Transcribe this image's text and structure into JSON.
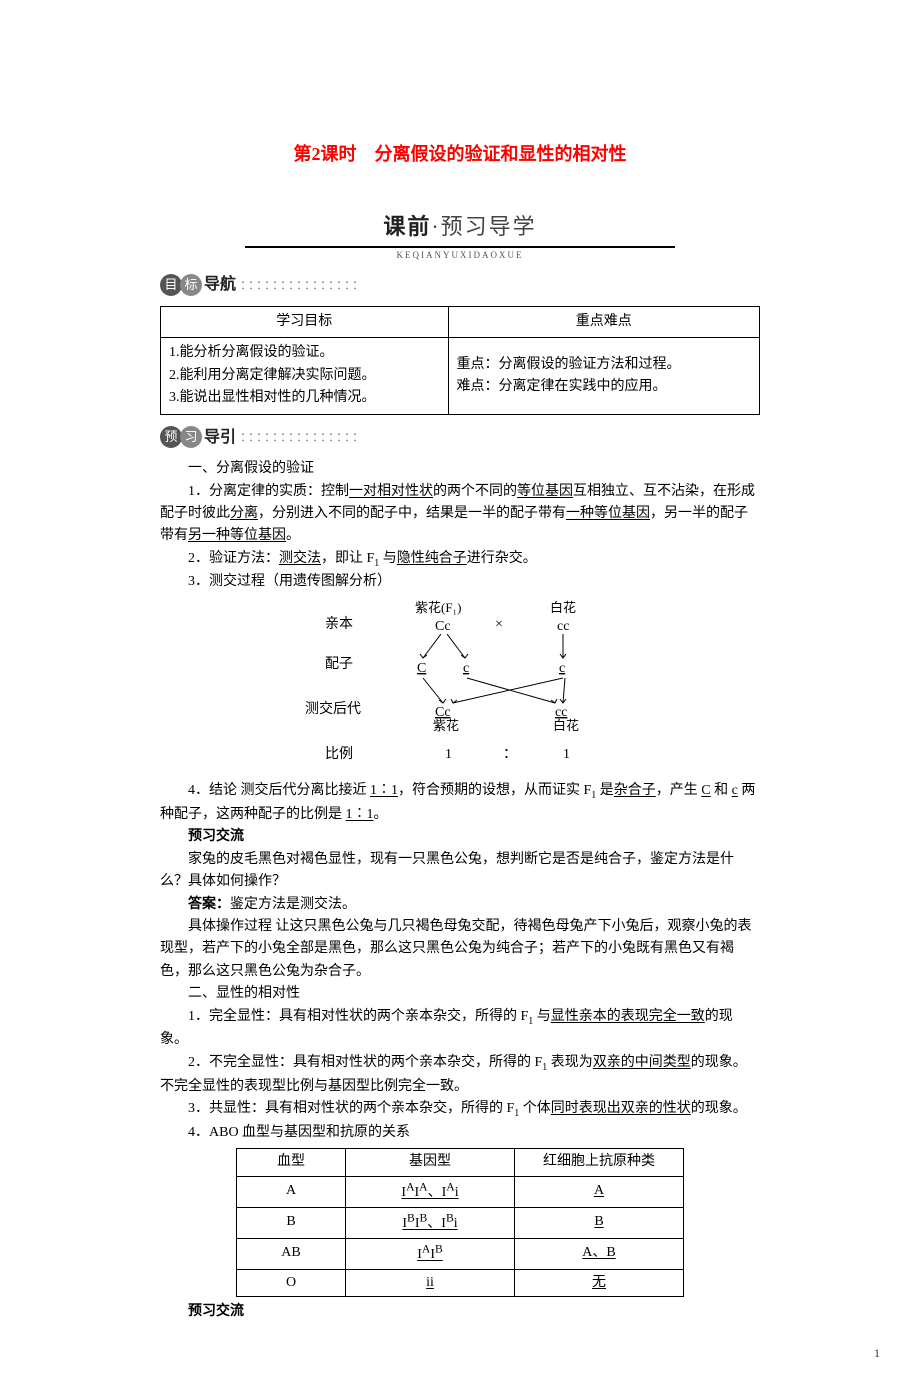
{
  "title": "第2课时　分离假设的验证和显性的相对性",
  "header1": {
    "bold": "课前",
    "light": "·预习导学",
    "pinyin": "KEQIANYUXIDAOXUE"
  },
  "badge_nav": {
    "c1": "目",
    "c2": "标",
    "tail": "导航",
    "dots": "：：：：：：：：：：：：：：："
  },
  "badge_guide": {
    "c1": "预",
    "c2": "习",
    "tail": "导引",
    "dots": "：：：：：：：：：：：：：：："
  },
  "goal_table": {
    "headers": [
      "学习目标",
      "重点难点"
    ],
    "left": "1.能分析分离假设的验证。\n2.能利用分离定律解决实际问题。\n3.能说出显性相对性的几种情况。",
    "right": "重点：分离假设的验证方法和过程。\n难点：分离定律在实践中的应用。"
  },
  "s1": {
    "heading": "一、分离假设的验证",
    "p1_pre": "1．分离定律的实质：控制",
    "u1": "一对相对性状",
    "p1_mid1": "的两个不同的",
    "u2": "等位基因",
    "p1_mid2": "互相独立、互不沾染，在形成配子时彼此",
    "u3": "分离",
    "p1_mid3": "，分别进入不同的配子中，结果是一半的配子带有",
    "u4": "一种等位基因",
    "p1_mid4": "，另一半的配子带有",
    "u5": "另一种等位基因",
    "p1_end": "。",
    "p2_pre": "2．验证方法：",
    "u6": "测交法",
    "p2_mid": "，即让 F",
    "f1": "1",
    "p2_mid2": " 与",
    "u7": "隐性纯合子",
    "p2_end": "进行杂交。",
    "p3": "3．测交过程（用遗传图解分析）"
  },
  "diagram": {
    "row_parent": "亲本",
    "row_gamete": "配子",
    "row_test": "测交后代",
    "row_ratio": "比例",
    "purple_f1": "紫花(F₁)",
    "white": "白花",
    "Cc": "Cc",
    "cc": "cc",
    "C": "C",
    "c": "c",
    "purple": "紫花",
    "one": "1",
    "colon": "：",
    "cross": "×"
  },
  "s1b": {
    "p4_pre": "4．结论 测交后代分离比接近 ",
    "u_ratio": "1∶1",
    "p4_mid1": "，符合预期的设想，从而证实 F",
    "f1": "1",
    "p4_mid2": " 是",
    "u_hetero": "杂合子",
    "p4_mid3": "，产生 ",
    "u_C": "C",
    "p4_mid4": " 和 ",
    "u_c": "c",
    "p4_mid5": " 两种配子，这两种配子的比例是 ",
    "u_ratio2": "1∶1",
    "p4_end": "。"
  },
  "ex1": {
    "title": "预习交流",
    "q": "家兔的皮毛黑色对褐色显性，现有一只黑色公兔，想判断它是否是纯合子，鉴定方法是什么？具体如何操作？",
    "ans_label": "答案：",
    "ans1": "鉴定方法是测交法。",
    "ans2": "具体操作过程 让这只黑色公兔与几只褐色母兔交配，待褐色母兔产下小兔后，观察小兔的表现型，若产下的小兔全部是黑色，那么这只黑色公兔为纯合子；若产下的小兔既有黑色又有褐色，那么这只黑色公兔为杂合子。"
  },
  "s2": {
    "heading": "二、显性的相对性",
    "p1_pre": "1．完全显性：具有相对性状的两个亲本杂交，所得的 F",
    "f1": "1",
    "p1_mid": " 与",
    "u1": "显性亲本的表现完全一致",
    "p1_end": "的现象。",
    "p2_pre": "2．不完全显性：具有相对性状的两个亲本杂交，所得的 F",
    "p2_mid": " 表现为",
    "u2": "双亲的中间类型",
    "p2_end": "的现象。不完全显性的表现型比例与基因型比例完全一致。",
    "p3_pre": "3．共显性：具有相对性状的两个亲本杂交，所得的 F",
    "p3_mid": " 个体",
    "u3": "同时表现出双亲的性状",
    "p3_end": "的现象。",
    "p4": "4．ABO 血型与基因型和抗原的关系"
  },
  "blood_table": {
    "headers": [
      "血型",
      "基因型",
      "红细胞上抗原种类"
    ],
    "rows": [
      {
        "type": "A",
        "geno_html": "I<sup>A</sup>I<sup>A</sup>、I<sup>A</sup>i",
        "antigen": "A"
      },
      {
        "type": "B",
        "geno_html": "I<sup>B</sup>I<sup>B</sup>、I<sup>B</sup>i",
        "antigen": "B"
      },
      {
        "type": "AB",
        "geno_html": "I<sup>A</sup>I<sup>B</sup>",
        "antigen": "A、B"
      },
      {
        "type": "O",
        "geno_html": "ii",
        "antigen": "无"
      }
    ]
  },
  "ex2_title": "预习交流",
  "page_number": "1"
}
